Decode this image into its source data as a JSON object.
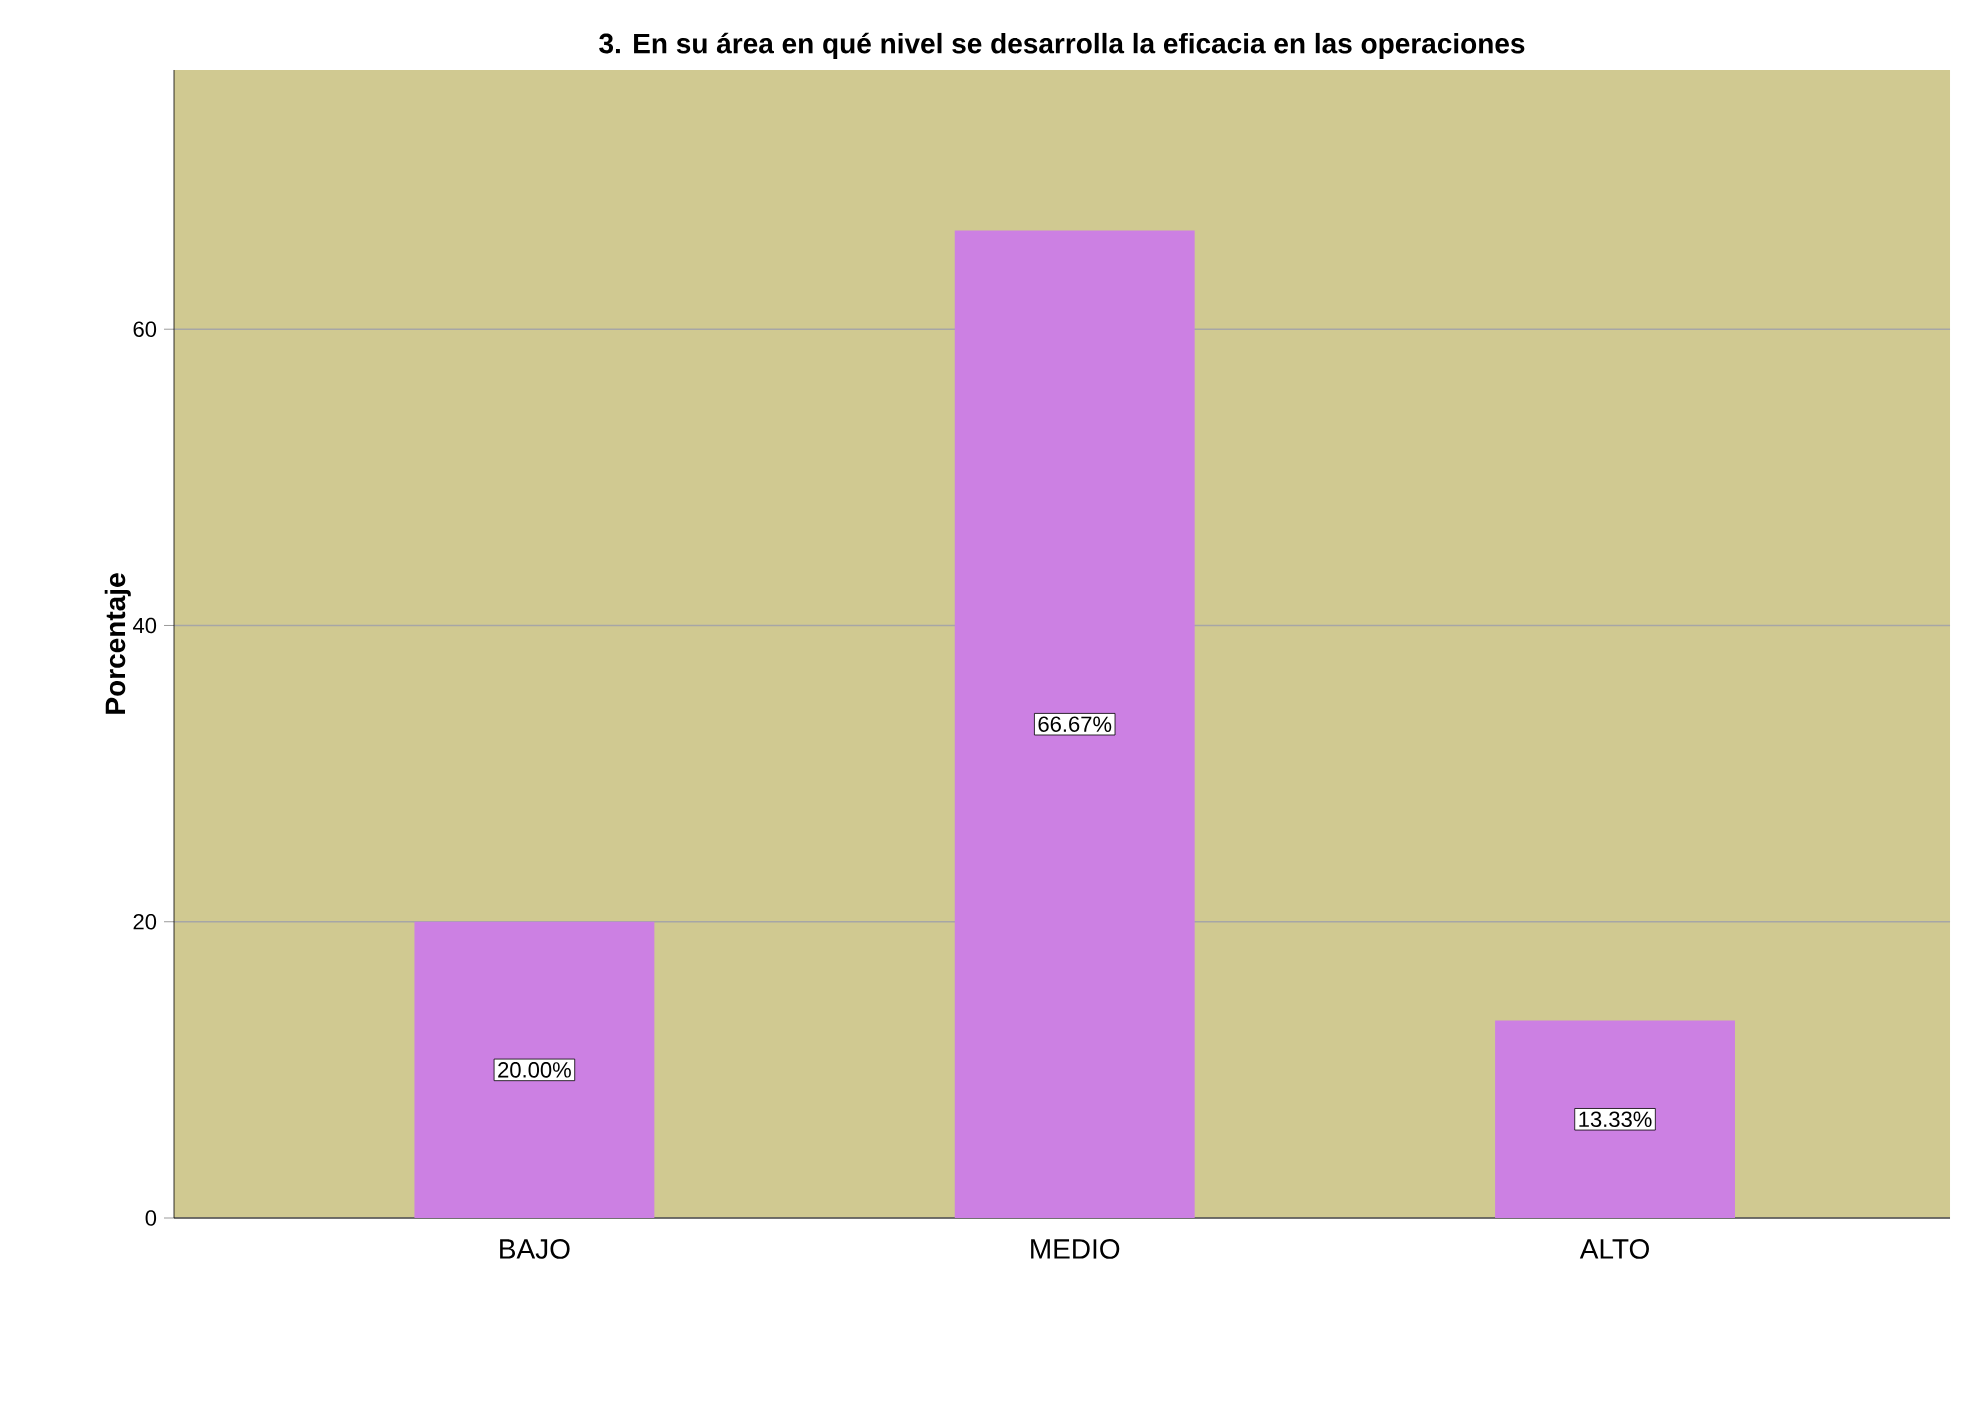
{
  "chart_data": {
    "type": "bar",
    "title": "3. En su área en qué nivel se desarrolla la eficacia en las operaciones",
    "ylabel": "Porcentaje",
    "categories": [
      "BAJO",
      "MEDIO",
      "ALTO"
    ],
    "values": [
      20.0,
      66.67,
      13.33
    ],
    "value_labels": [
      "20.00%",
      "66.67%",
      "13.33%"
    ],
    "color": "#cc80e3",
    "ylim": [
      0,
      77.5
    ],
    "yticks": [
      0,
      20,
      40,
      60
    ],
    "grid": "y"
  }
}
